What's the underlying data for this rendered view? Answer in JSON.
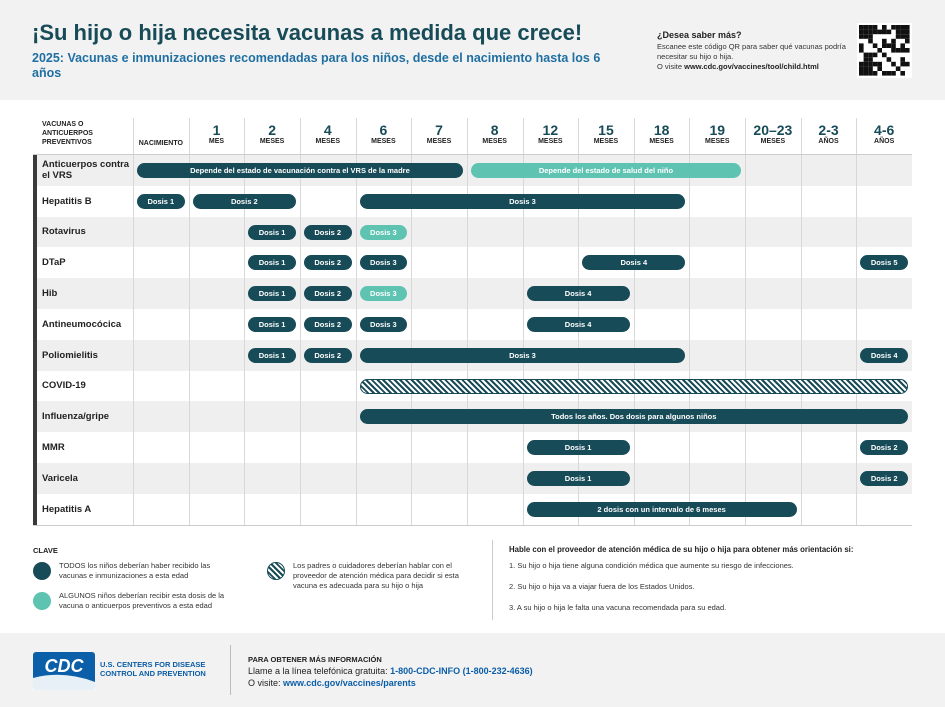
{
  "header": {
    "title": "¡Su hijo o hija necesita vacunas a medida que crece!",
    "subtitle": "2025: Vacunas e inmunizaciones recomendadas para los niños, desde el nacimiento hasta los 6 años",
    "qr_title": "¿Desea saber más?",
    "qr_text": "Escanee este código QR para saber qué vacunas podría necesitar su hijo o hija.",
    "qr_prefix": "O visite",
    "qr_url": "www.cdc.gov/vaccines/tool/child.html"
  },
  "kinds": {
    "all": "#174b57",
    "some": "#5ec4b1",
    "discuss": "#174b57"
  },
  "table": {
    "corner": "VACUNAS O ANTICUERPOS PREVENTIVOS",
    "columns": [
      {
        "unit": "NACIMIENTO"
      },
      {
        "num": "1",
        "unit": "MES"
      },
      {
        "num": "2",
        "unit": "MESES"
      },
      {
        "num": "4",
        "unit": "MESES"
      },
      {
        "num": "6",
        "unit": "MESES"
      },
      {
        "num": "7",
        "unit": "MESES"
      },
      {
        "num": "8",
        "unit": "MESES"
      },
      {
        "num": "12",
        "unit": "MESES"
      },
      {
        "num": "15",
        "unit": "MESES"
      },
      {
        "num": "18",
        "unit": "MESES"
      },
      {
        "num": "19",
        "unit": "MESES"
      },
      {
        "num": "20–23",
        "unit": "MESES"
      },
      {
        "num": "2-3",
        "unit": "AÑOS"
      },
      {
        "num": "4-6",
        "unit": "AÑOS"
      }
    ],
    "rows": [
      {
        "name": "Anticuerpos contra el VRS",
        "bars": [
          {
            "label": "Depende del estado de vacunación contra el VRS de la madre",
            "start": 0,
            "end": 5,
            "kind": "all"
          },
          {
            "label": "Depende del estado de salud del niño",
            "start": 6,
            "end": 10,
            "kind": "some"
          }
        ]
      },
      {
        "name": "Hepatitis B",
        "bars": [
          {
            "label": "Dosis 1",
            "start": 0,
            "end": 0,
            "kind": "all"
          },
          {
            "label": "Dosis 2",
            "start": 1,
            "end": 2,
            "kind": "all"
          },
          {
            "label": "Dosis 3",
            "start": 4,
            "end": 9,
            "kind": "all"
          }
        ]
      },
      {
        "name": "Rotavirus",
        "bars": [
          {
            "label": "Dosis 1",
            "start": 2,
            "end": 2,
            "kind": "all"
          },
          {
            "label": "Dosis 2",
            "start": 3,
            "end": 3,
            "kind": "all"
          },
          {
            "label": "Dosis 3",
            "start": 4,
            "end": 4,
            "kind": "some"
          }
        ]
      },
      {
        "name": "DTaP",
        "bars": [
          {
            "label": "Dosis 1",
            "start": 2,
            "end": 2,
            "kind": "all"
          },
          {
            "label": "Dosis 2",
            "start": 3,
            "end": 3,
            "kind": "all"
          },
          {
            "label": "Dosis 3",
            "start": 4,
            "end": 4,
            "kind": "all"
          },
          {
            "label": "Dosis 4",
            "start": 8,
            "end": 9,
            "kind": "all"
          },
          {
            "label": "Dosis 5",
            "start": 13,
            "end": 13,
            "kind": "all"
          }
        ]
      },
      {
        "name": "Hib",
        "bars": [
          {
            "label": "Dosis 1",
            "start": 2,
            "end": 2,
            "kind": "all"
          },
          {
            "label": "Dosis 2",
            "start": 3,
            "end": 3,
            "kind": "all"
          },
          {
            "label": "Dosis 3",
            "start": 4,
            "end": 4,
            "kind": "some"
          },
          {
            "label": "Dosis 4",
            "start": 7,
            "end": 8,
            "kind": "all"
          }
        ]
      },
      {
        "name": "Antineumocócica",
        "bars": [
          {
            "label": "Dosis 1",
            "start": 2,
            "end": 2,
            "kind": "all"
          },
          {
            "label": "Dosis 2",
            "start": 3,
            "end": 3,
            "kind": "all"
          },
          {
            "label": "Dosis 3",
            "start": 4,
            "end": 4,
            "kind": "all"
          },
          {
            "label": "Dosis 4",
            "start": 7,
            "end": 8,
            "kind": "all"
          }
        ]
      },
      {
        "name": "Poliomielitis",
        "bars": [
          {
            "label": "Dosis 1",
            "start": 2,
            "end": 2,
            "kind": "all"
          },
          {
            "label": "Dosis 2",
            "start": 3,
            "end": 3,
            "kind": "all"
          },
          {
            "label": "Dosis 3",
            "start": 4,
            "end": 9,
            "kind": "all"
          },
          {
            "label": "Dosis 4",
            "start": 13,
            "end": 13,
            "kind": "all"
          }
        ]
      },
      {
        "name": "COVID-19",
        "bars": [
          {
            "start": 4,
            "end": 13,
            "kind": "discuss"
          }
        ]
      },
      {
        "name": "Influenza/gripe",
        "bars": [
          {
            "label": "Todos los años. Dos dosis para algunos niños",
            "start": 4,
            "end": 13,
            "kind": "all"
          }
        ]
      },
      {
        "name": "MMR",
        "bars": [
          {
            "label": "Dosis 1",
            "start": 7,
            "end": 8,
            "kind": "all"
          },
          {
            "label": "Dosis 2",
            "start": 13,
            "end": 13,
            "kind": "all"
          }
        ]
      },
      {
        "name": "Varicela",
        "bars": [
          {
            "label": "Dosis 1",
            "start": 7,
            "end": 8,
            "kind": "all"
          },
          {
            "label": "Dosis 2",
            "start": 13,
            "end": 13,
            "kind": "all"
          }
        ]
      },
      {
        "name": "Hepatitis A",
        "bars": [
          {
            "label": "2 dosis con un intervalo de 6 meses",
            "start": 7,
            "end": 11,
            "kind": "all"
          }
        ]
      }
    ]
  },
  "key": {
    "title": "CLAVE",
    "items": [
      {
        "kind": "all",
        "text": "TODOS los niños deberían haber recibido las vacunas e inmunizaciones a esta edad"
      },
      {
        "kind": "some",
        "text": "ALGUNOS niños deberían recibir esta dosis de la vacuna o anticuerpos preventivos a esta edad"
      },
      {
        "kind": "discuss",
        "text": "Los padres o cuidadores deberían hablar con el proveedor de atención médica para decidir si esta vacuna es adecuada para su hijo o hija"
      }
    ]
  },
  "advice": {
    "title": "Hable con el proveedor de atención médica de su hijo o hija para obtener más orientación si:",
    "items": [
      "1. Su hijo o hija tiene alguna condición médica que aumente su riesgo de infecciones.",
      "2. Su hijo o hija va a viajar fuera de los Estados Unidos.",
      "3. A su hijo o hija le falta una vacuna recomendada para su edad."
    ]
  },
  "footer": {
    "logo": "CDC",
    "agency": "U.S. CENTERS FOR DISEASE CONTROL AND PREVENTION",
    "info_title": "PARA OBTENER MÁS INFORMACIÓN",
    "call": "Llame a la línea telefónica gratuita:",
    "phone": "1-800-CDC-INFO (1-800-232-4636)",
    "visit": "O visite:",
    "url": "www.cdc.gov/vaccines/parents"
  }
}
